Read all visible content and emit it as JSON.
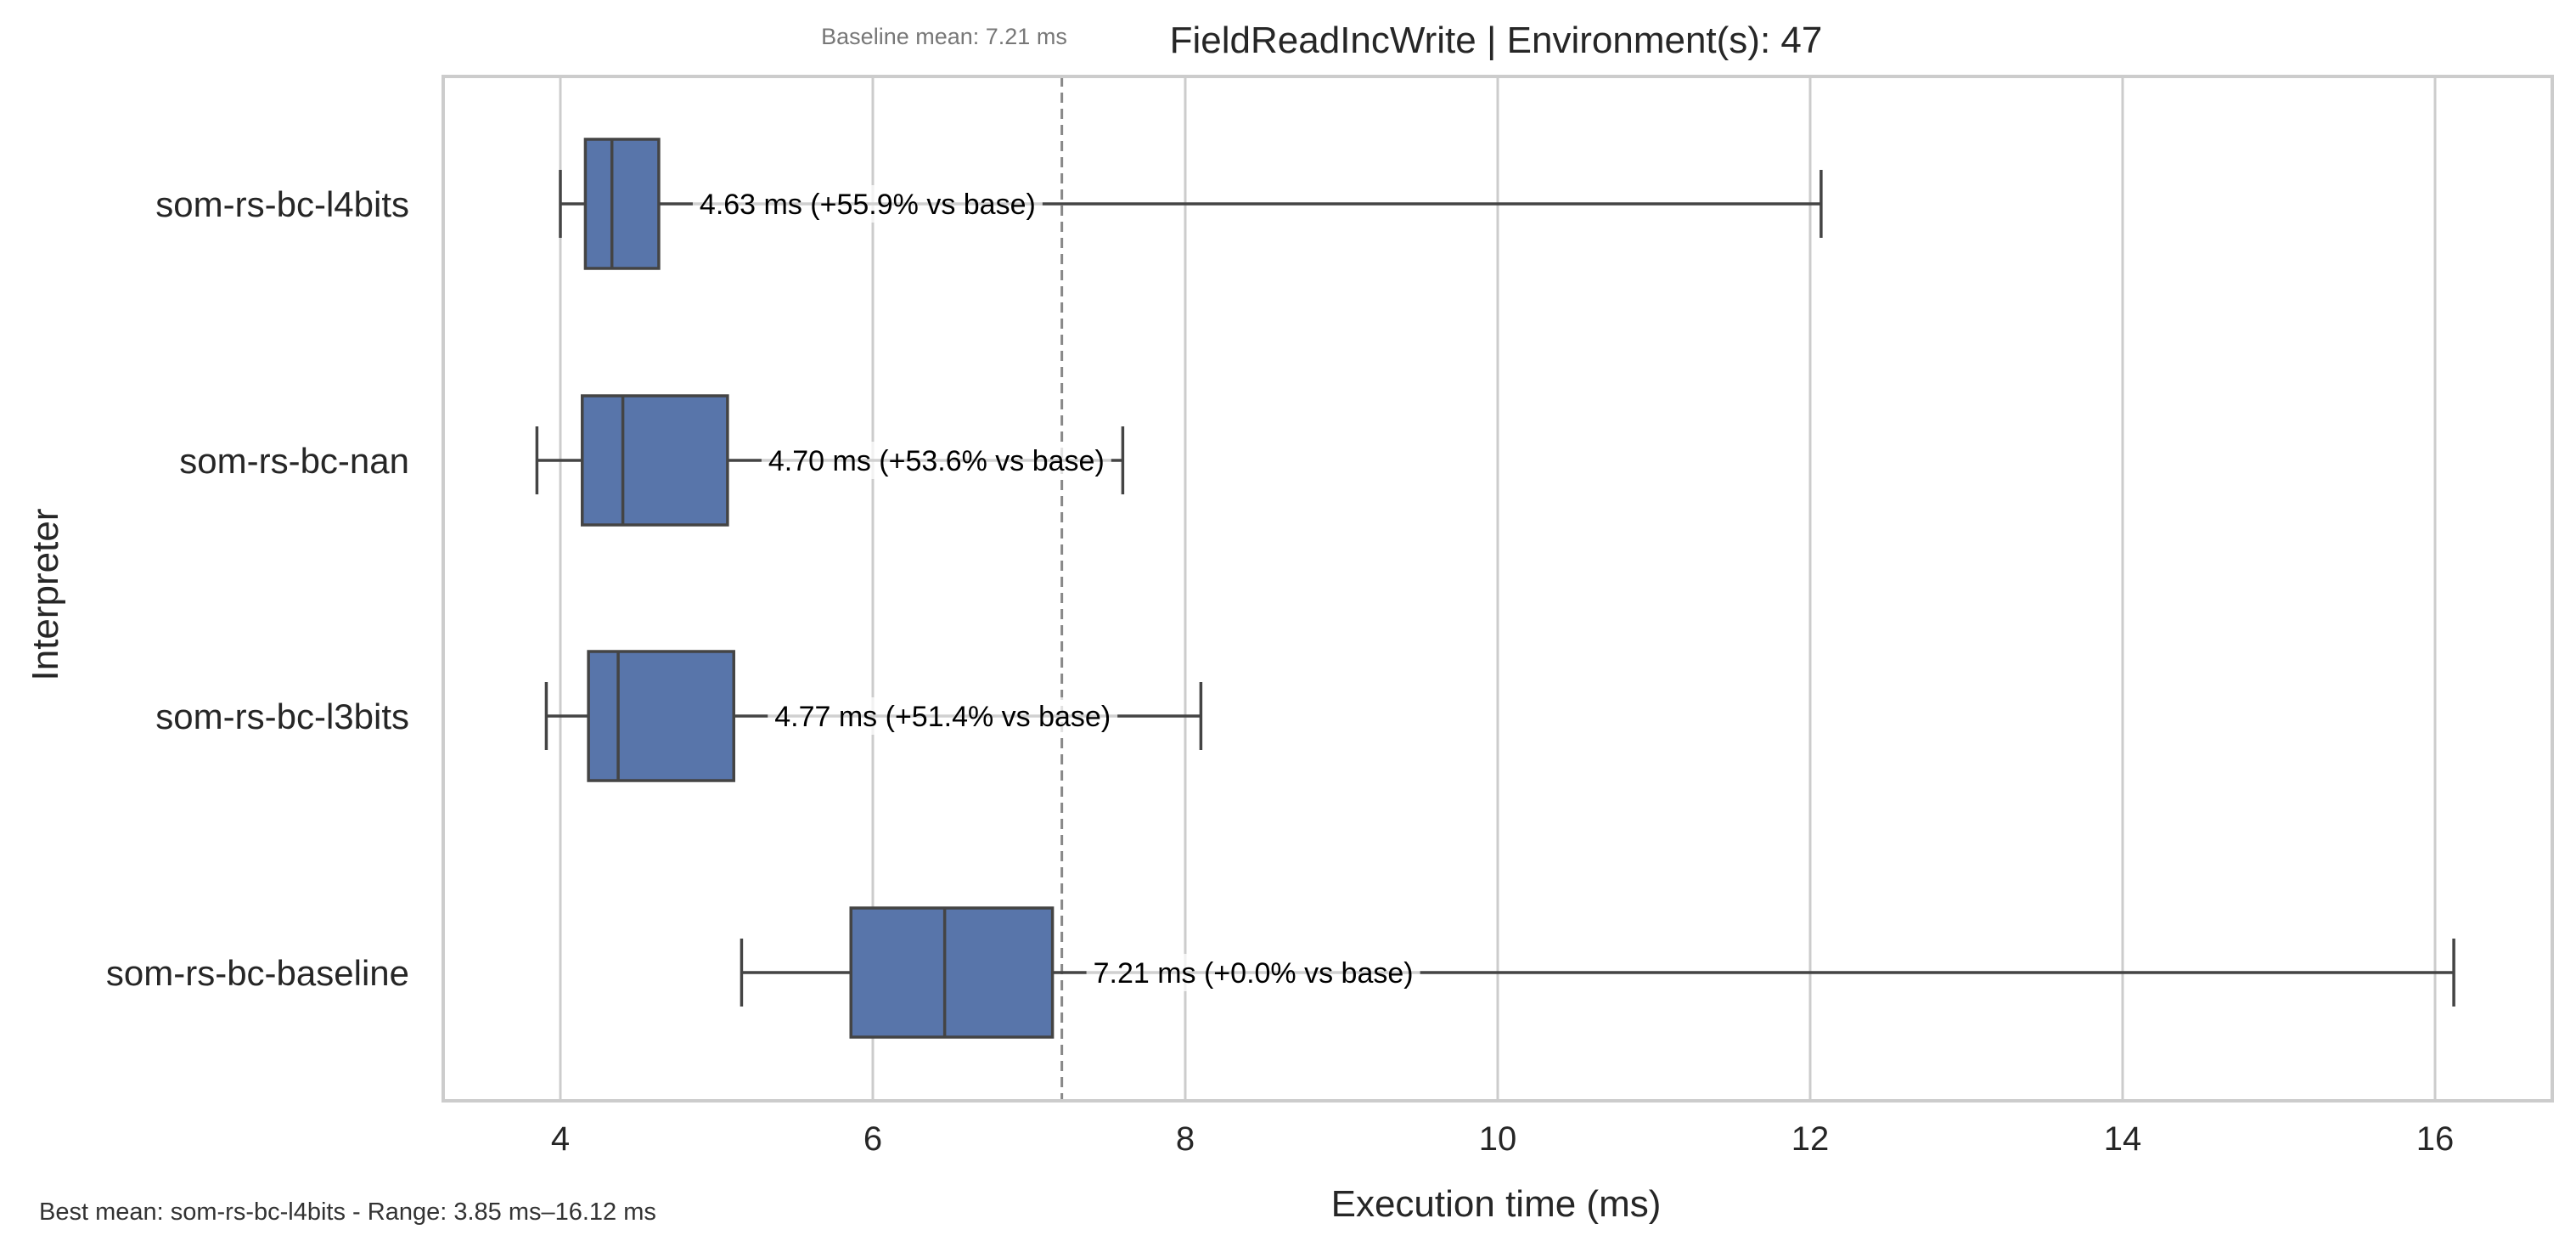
{
  "chart_data": {
    "type": "box",
    "title": "FieldReadIncWrite | Environment(s): 47",
    "subtitle": "Baseline mean: 7.21 ms",
    "xlabel": "Execution time (ms)",
    "ylabel": "Interpreter",
    "xlim": [
      3.25,
      16.75
    ],
    "xticks": [
      4,
      6,
      8,
      10,
      12,
      14,
      16
    ],
    "xtick_labels": [
      "4",
      "6",
      "8",
      "10",
      "12",
      "14",
      "16"
    ],
    "grid": "vertical",
    "reference_line": {
      "x": 7.21,
      "style": "dashed"
    },
    "footer": "Best mean: som-rs-bc-l4bits - Range: 3.85 ms–16.12 ms",
    "series": [
      {
        "name": "som-rs-bc-l4bits",
        "whisker_low": 4.0,
        "q1": 4.16,
        "median": 4.33,
        "q3": 4.63,
        "whisker_high": 12.07,
        "label": "4.63 ms  (+55.9% vs base)"
      },
      {
        "name": "som-rs-bc-nan",
        "whisker_low": 3.85,
        "q1": 4.14,
        "median": 4.4,
        "q3": 5.07,
        "whisker_high": 7.6,
        "label": "4.70 ms  (+53.6% vs base)"
      },
      {
        "name": "som-rs-bc-l3bits",
        "whisker_low": 3.91,
        "q1": 4.18,
        "median": 4.37,
        "q3": 5.11,
        "whisker_high": 8.1,
        "label": "4.77 ms  (+51.4% vs base)"
      },
      {
        "name": "som-rs-bc-baseline",
        "whisker_low": 5.16,
        "q1": 5.86,
        "median": 6.46,
        "q3": 7.15,
        "whisker_high": 16.12,
        "label": "7.21 ms  (+0.0% vs base)"
      }
    ],
    "colors": {
      "box_fill": "#5875aa",
      "box_edge": "#444444",
      "grid": "#cccccc",
      "frame": "#cccccc",
      "reference_line": "#888888",
      "text": "#262626",
      "subtitle": "#777777"
    }
  }
}
